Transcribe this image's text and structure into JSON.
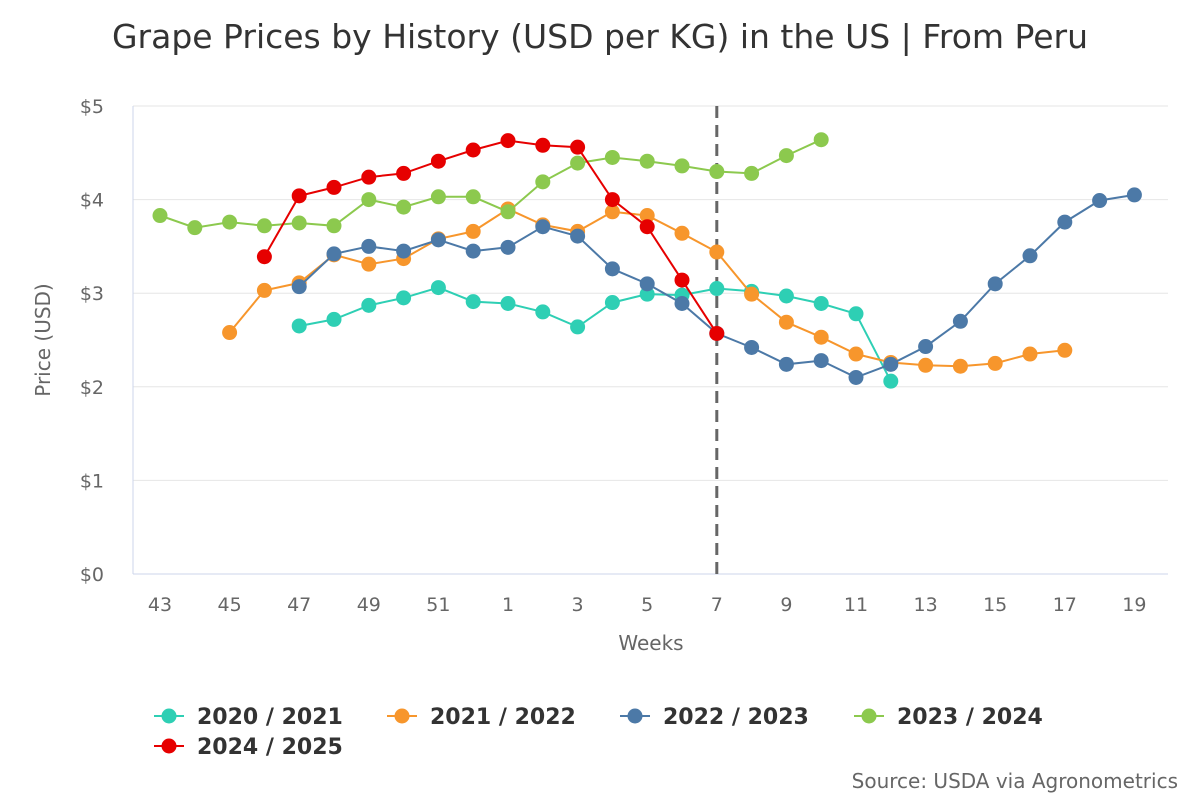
{
  "chart_data": {
    "type": "line",
    "title": "Grape Prices by History (USD per KG) in the US | From Peru",
    "xlabel": "Weeks",
    "ylabel": "Price (USD)",
    "ylim": [
      0,
      5
    ],
    "y_ticks": [
      "$0",
      "$1",
      "$2",
      "$3",
      "$4",
      "$5"
    ],
    "x": [
      43,
      44,
      45,
      46,
      47,
      48,
      49,
      50,
      51,
      52,
      1,
      2,
      3,
      4,
      5,
      6,
      7,
      8,
      9,
      10,
      11,
      12,
      13,
      14,
      15,
      16,
      17,
      18,
      19
    ],
    "x_tick_labels": [
      "43",
      "45",
      "47",
      "49",
      "51",
      "1",
      "3",
      "5",
      "7",
      "9",
      "11",
      "13",
      "15",
      "17",
      "19"
    ],
    "reference_line_week": 7,
    "legend_position": "bottom-left",
    "source": "Source: USDA via Agronometrics",
    "series": [
      {
        "name": "2020 / 2021",
        "color": "#2ecfb4",
        "values": [
          null,
          null,
          null,
          null,
          2.65,
          2.72,
          2.87,
          2.95,
          3.06,
          2.91,
          2.89,
          2.8,
          2.64,
          2.9,
          2.99,
          2.98,
          3.05,
          3.02,
          2.97,
          2.89,
          2.78,
          2.06,
          null,
          null,
          null,
          null,
          null,
          null,
          null
        ]
      },
      {
        "name": "2021 / 2022",
        "color": "#f7962c",
        "values": [
          null,
          null,
          2.58,
          3.03,
          3.11,
          3.41,
          3.31,
          3.37,
          3.58,
          3.66,
          3.9,
          3.73,
          3.66,
          3.87,
          3.83,
          3.64,
          3.44,
          2.99,
          2.69,
          2.53,
          2.35,
          2.26,
          2.23,
          2.22,
          2.25,
          2.35,
          2.39,
          null,
          null
        ]
      },
      {
        "name": "2022 / 2023",
        "color": "#4c79a7",
        "values": [
          null,
          null,
          null,
          null,
          3.07,
          3.42,
          3.5,
          3.45,
          3.57,
          3.45,
          3.49,
          3.71,
          3.61,
          3.26,
          3.1,
          2.89,
          2.57,
          2.42,
          2.24,
          2.28,
          2.1,
          2.24,
          2.43,
          2.7,
          3.1,
          3.4,
          3.76,
          3.99,
          4.05
        ]
      },
      {
        "name": "2023 / 2024",
        "color": "#8cc94e",
        "values": [
          3.83,
          3.7,
          3.76,
          3.72,
          3.75,
          3.72,
          4.0,
          3.92,
          4.03,
          4.03,
          3.87,
          4.19,
          4.39,
          4.45,
          4.41,
          4.36,
          4.3,
          4.28,
          4.47,
          4.64,
          null,
          null,
          null,
          null,
          null,
          null,
          null,
          null,
          null
        ]
      },
      {
        "name": "2024 / 2025",
        "color": "#e60000",
        "values": [
          null,
          null,
          null,
          3.39,
          4.04,
          4.13,
          4.24,
          4.28,
          4.41,
          4.53,
          4.63,
          4.58,
          4.56,
          4.0,
          3.71,
          3.14,
          2.57,
          null,
          null,
          null,
          null,
          null,
          null,
          null,
          null,
          null,
          null,
          null,
          null
        ]
      }
    ]
  }
}
